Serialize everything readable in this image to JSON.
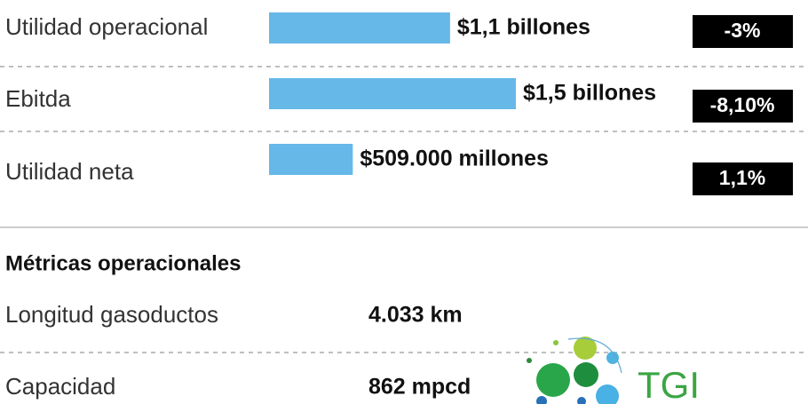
{
  "chart_data": {
    "type": "bar",
    "categories": [
      "Utilidad operacional",
      "Ebitda",
      "Utilidad neta"
    ],
    "values": [
      1.1,
      1.5,
      0.509
    ],
    "value_labels": [
      "$1,1 billones",
      "$1,5 billones",
      "$509.000 millones"
    ],
    "color": "#66b8e8",
    "change_labels": [
      "-3%",
      "-8,10%",
      "1,1%"
    ]
  },
  "metrics": {
    "title": "Métricas operacionales",
    "rows": [
      [
        "Longitud gasoductos",
        "4.033 km"
      ],
      [
        "Capacidad",
        "862 mpcd"
      ]
    ]
  },
  "logo": {
    "text": "TGI"
  }
}
